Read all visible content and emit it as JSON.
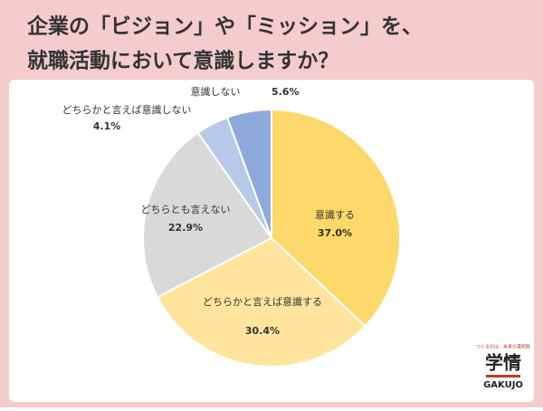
{
  "title": [
    "企業の「ビジョン」や「ミッション」を、",
    "就職活動において意識しますか？"
  ],
  "chart_data": {
    "type": "pie",
    "categories": [
      "意識する",
      "どちらかと言えば意識する",
      "どちらとも言えない",
      "どちらかと言えば意識しない",
      "意識しない"
    ],
    "values": [
      37.0,
      30.4,
      22.9,
      4.1,
      5.6
    ],
    "value_labels": [
      "37.0%",
      "30.4%",
      "22.9%",
      "4.1%",
      "5.6%"
    ],
    "colors": [
      "#fdd86a",
      "#fee49c",
      "#d9d9d9",
      "#b7c9e8",
      "#8eaadc"
    ]
  },
  "logo": {
    "tagline": "つくるのは、未来の選択肢",
    "name": "学情",
    "name_en": "GAKUJO"
  }
}
